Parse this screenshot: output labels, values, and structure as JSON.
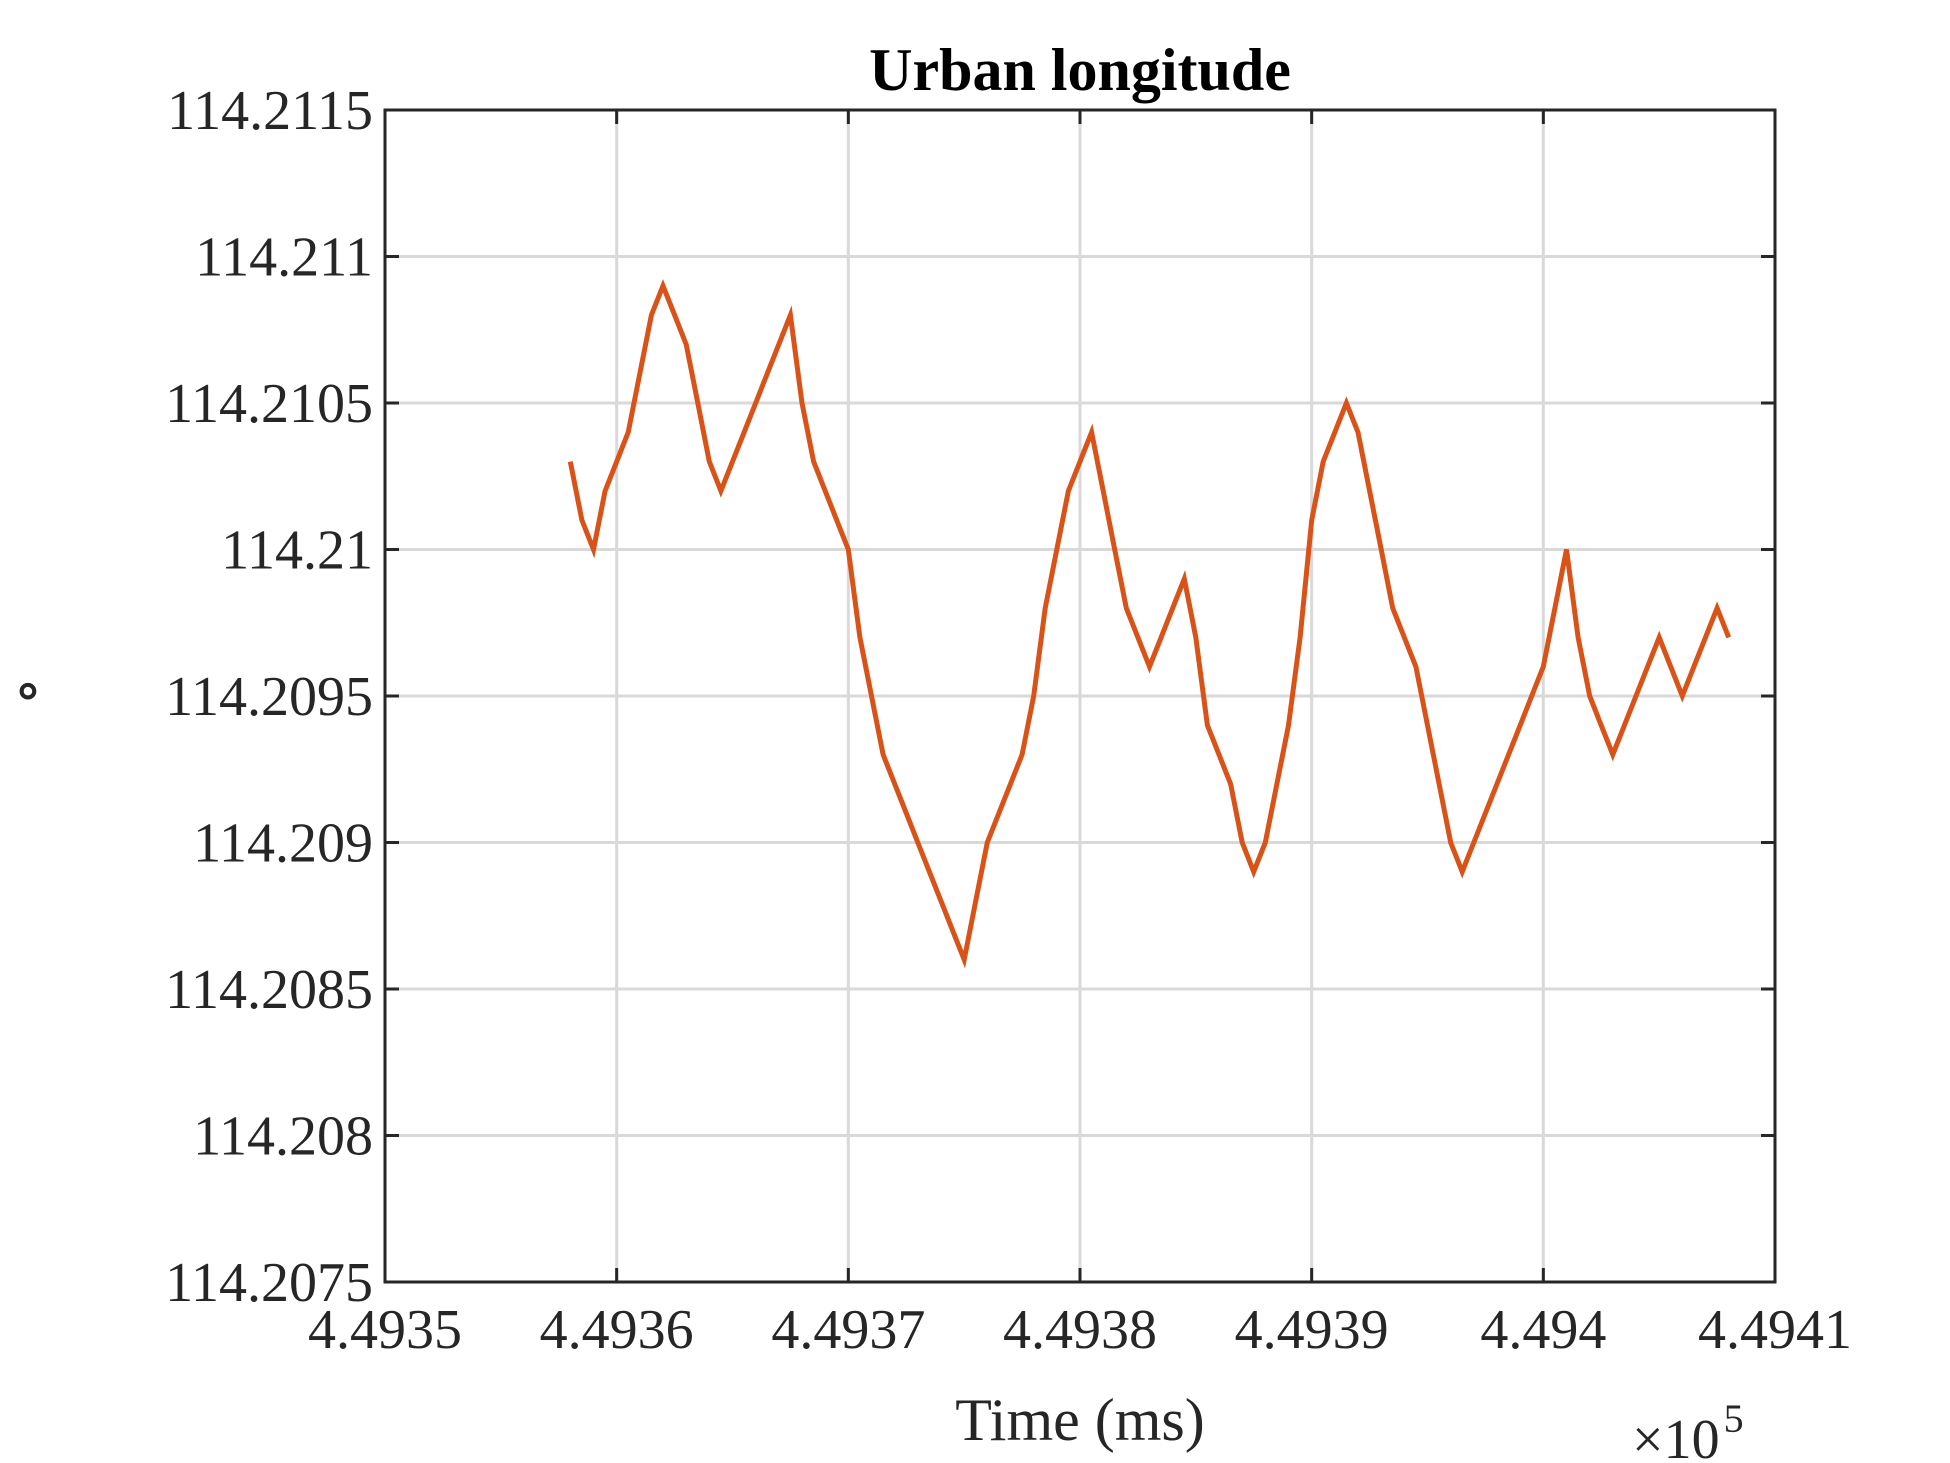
{
  "chart_data": {
    "type": "line",
    "title": "Urban longitude",
    "xlabel": "Time (ms)",
    "ylabel": "∘",
    "x_exponent": {
      "base": "×10",
      "power": "5"
    },
    "xlim": [
      4.4935,
      4.4941
    ],
    "ylim": [
      114.2075,
      114.2115
    ],
    "x_ticks": [
      4.4935,
      4.4936,
      4.4937,
      4.4938,
      4.4939,
      4.494,
      4.4941
    ],
    "x_tick_labels": [
      "4.4935",
      "4.4936",
      "4.4937",
      "4.4938",
      "4.4939",
      "4.494",
      "4.4941"
    ],
    "y_ticks": [
      114.2075,
      114.208,
      114.2085,
      114.209,
      114.2095,
      114.21,
      114.2105,
      114.211,
      114.2115
    ],
    "y_tick_labels": [
      "114.2075",
      "114.208",
      "114.2085",
      "114.209",
      "114.2095",
      "114.21",
      "114.2105",
      "114.211",
      "114.2115"
    ],
    "grid": true,
    "series": [
      {
        "color": "#D95319",
        "x": [
          4.49358,
          4.493585,
          4.49359,
          4.493595,
          4.4936,
          4.493605,
          4.49361,
          4.493615,
          4.49362,
          4.493625,
          4.49363,
          4.493635,
          4.49364,
          4.493645,
          4.49365,
          4.493655,
          4.49366,
          4.493665,
          4.49367,
          4.493675,
          4.49368,
          4.493685,
          4.49369,
          4.493695,
          4.4937,
          4.493705,
          4.49371,
          4.493715,
          4.49372,
          4.493725,
          4.49373,
          4.493735,
          4.49374,
          4.493745,
          4.49375,
          4.493755,
          4.49376,
          4.493765,
          4.49377,
          4.493775,
          4.49378,
          4.493785,
          4.49379,
          4.493795,
          4.4938,
          4.493805,
          4.49381,
          4.493815,
          4.49382,
          4.493825,
          4.49383,
          4.493835,
          4.49384,
          4.493845,
          4.49385,
          4.493855,
          4.49386,
          4.493865,
          4.49387,
          4.493875,
          4.49388,
          4.493885,
          4.49389,
          4.493895,
          4.4939,
          4.493905,
          4.49391,
          4.493915,
          4.49392,
          4.493925,
          4.49393,
          4.493935,
          4.49394,
          4.493945,
          4.49395,
          4.493955,
          4.49396,
          4.493965,
          4.49397,
          4.493975,
          4.49398,
          4.493985,
          4.49399,
          4.493995,
          4.494,
          4.494005,
          4.49401,
          4.494015,
          4.49402,
          4.494025,
          4.49403,
          4.494035,
          4.49404,
          4.494045,
          4.49405,
          4.494055,
          4.49406,
          4.494065,
          4.49407,
          4.494075,
          4.49408
        ],
        "y": [
          114.2103,
          114.2101,
          114.21,
          114.2102,
          114.2103,
          114.2104,
          114.2106,
          114.2108,
          114.2109,
          114.2108,
          114.2107,
          114.2105,
          114.2103,
          114.2102,
          114.2103,
          114.2104,
          114.2105,
          114.2106,
          114.2107,
          114.2108,
          114.2105,
          114.2103,
          114.2102,
          114.2101,
          114.21,
          114.2097,
          114.2095,
          114.2093,
          114.2092,
          114.2091,
          114.209,
          114.2089,
          114.2088,
          114.2087,
          114.2086,
          114.2088,
          114.209,
          114.2091,
          114.2092,
          114.2093,
          114.2095,
          114.2098,
          114.21,
          114.2102,
          114.2103,
          114.2104,
          114.2102,
          114.21,
          114.2098,
          114.2097,
          114.2096,
          114.2097,
          114.2098,
          114.2099,
          114.2097,
          114.2094,
          114.2093,
          114.2092,
          114.209,
          114.2089,
          114.209,
          114.2092,
          114.2094,
          114.2097,
          114.2101,
          114.2103,
          114.2104,
          114.2105,
          114.2104,
          114.2102,
          114.21,
          114.2098,
          114.2097,
          114.2096,
          114.2094,
          114.2092,
          114.209,
          114.2089,
          114.209,
          114.2091,
          114.2092,
          114.2093,
          114.2094,
          114.2095,
          114.2096,
          114.2098,
          114.21,
          114.2097,
          114.2095,
          114.2094,
          114.2093,
          114.2094,
          114.2095,
          114.2096,
          114.2097,
          114.2096,
          114.2095,
          114.2096,
          114.2097,
          114.2098,
          114.2097
        ]
      }
    ]
  }
}
